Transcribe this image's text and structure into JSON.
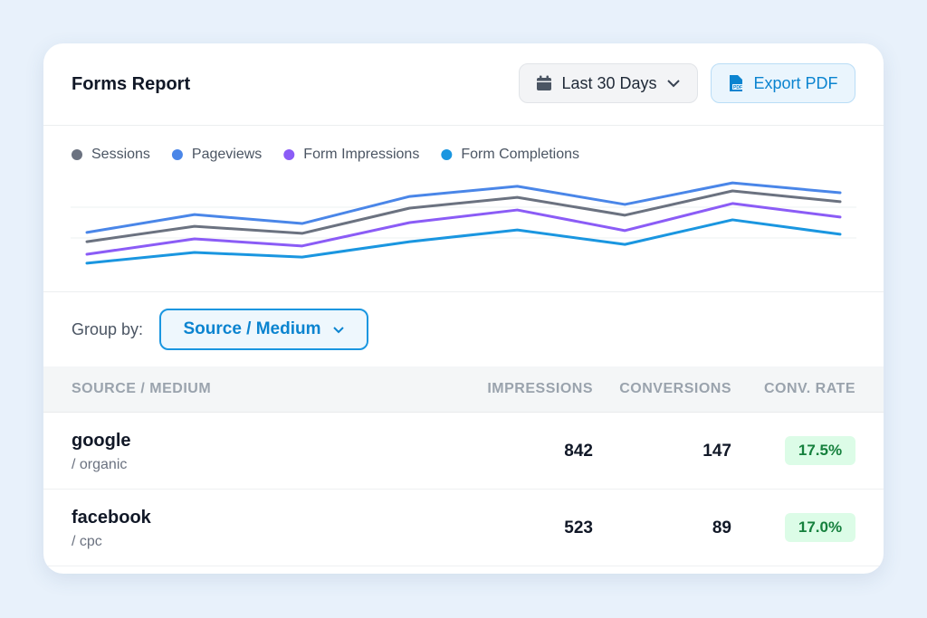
{
  "header": {
    "title": "Forms Report",
    "date_range": "Last 30 Days",
    "export": "Export PDF"
  },
  "chart_data": {
    "type": "line",
    "categories": [
      null,
      null,
      null,
      null,
      null,
      null,
      null,
      null
    ],
    "ylim": [
      0,
      3
    ],
    "yticks": [
      1,
      2
    ],
    "grid": true,
    "series": [
      {
        "name": "Sessions",
        "color": "#6b7280",
        "values": [
          0.88,
          1.38,
          1.15,
          1.97,
          2.32,
          1.74,
          2.53,
          2.18
        ]
      },
      {
        "name": "Pageviews",
        "color": "#4a86e8",
        "values": [
          1.18,
          1.76,
          1.47,
          2.35,
          2.68,
          2.09,
          2.79,
          2.47
        ]
      },
      {
        "name": "Form Impressions",
        "color": "#8b5cf6",
        "values": [
          0.47,
          0.97,
          0.74,
          1.5,
          1.91,
          1.24,
          2.12,
          1.68
        ]
      },
      {
        "name": "Form Completions",
        "color": "#1a96e0",
        "values": [
          0.18,
          0.53,
          0.38,
          0.88,
          1.26,
          0.79,
          1.59,
          1.12
        ]
      }
    ]
  },
  "group_by": {
    "label": "Group by:",
    "value": "Source / Medium"
  },
  "table": {
    "columns": [
      "SOURCE / MEDIUM",
      "IMPRESSIONS",
      "CONVERSIONS",
      "CONV. RATE"
    ],
    "rows": [
      {
        "source": "google",
        "medium": "/ organic",
        "impressions": 842,
        "conversions": 147,
        "conv_rate": "17.5%"
      },
      {
        "source": "facebook",
        "medium": "/ cpc",
        "impressions": 523,
        "conversions": 89,
        "conv_rate": "17.0%"
      }
    ]
  }
}
